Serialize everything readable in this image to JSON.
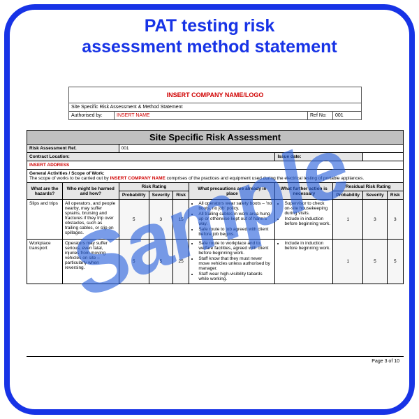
{
  "frame_color": "#1733e6",
  "watermark_text": "Sample",
  "watermark_color": "rgba(38,95,220,0.62)",
  "title_line1": "PAT testing risk",
  "title_line2": "assessment method statement",
  "header": {
    "company_placeholder": "INSERT COMPANY NAME/LOGO",
    "doc_title": "Site Specific Risk Assessment & Method Statement",
    "authorised_label": "Authorised by:",
    "authorised_value": "INSERT NAME",
    "ref_label": "Ref No:",
    "ref_value": "001"
  },
  "assessment": {
    "banner": "Site Specific Risk Assessment",
    "ref_label": "Risk Assessment Ref.",
    "ref_value": "001",
    "contract_label": "Contract Location:",
    "issue_label": "Issue date:",
    "issue_value": "",
    "address_placeholder": "INSERT ADDRESS",
    "scope_label": "General Activities / Scope of Work:",
    "scope_text_a": "The scope of works to be carried out by ",
    "scope_text_insert": "INSERT COMPANY NAME",
    "scope_text_b": " comprises of the practices and equipment used during the electrical testing of portable appliances."
  },
  "columns": {
    "hazards": "What are the hazards?",
    "who": "Who might be harmed and how?",
    "rating_group": "Risk Rating",
    "prob": "Probability",
    "sev": "Severity",
    "risk": "Risk",
    "precautions": "What precautions are already in place",
    "further": "What further action is necessary",
    "residual_group": "Residual Risk Rating"
  },
  "rows": [
    {
      "hazard": "Slips and trips",
      "who": "All operators, and people nearby, may suffer sprains, bruising and fractures if they trip over obstacles, such as trailing cables, or slip on spillages.",
      "p": "5",
      "s": "3",
      "r": "15",
      "precautions": [
        "All operators wear safety boots – 'no boots, no job' policy.",
        "All trailing cables in work area hung up or otherwise kept out of harm's way.",
        "Safe route to job agreed with client before job begins."
      ],
      "further": [
        "Supervisor to check on-site housekeeping during visits.",
        "Include in induction before beginning work."
      ],
      "rp": "1",
      "rs": "3",
      "rr": "3"
    },
    {
      "hazard": "Workplace transport",
      "who": "Operators may suffer serious, even fatal, injuries from moving vehicles on site – particularly when reversing.",
      "p": "5",
      "s": "5",
      "r": "25",
      "precautions": [
        "Safe route to workplace and to welfare facilities, agreed with client before beginning work.",
        "Staff know that they must never move vehicles unless authorised by manager.",
        "Staff wear high-visibility tabards while working."
      ],
      "further": [
        "Include in induction before beginning work."
      ],
      "rp": "1",
      "rs": "5",
      "rr": "5"
    }
  ],
  "page_footer": "Page 3 of 10"
}
